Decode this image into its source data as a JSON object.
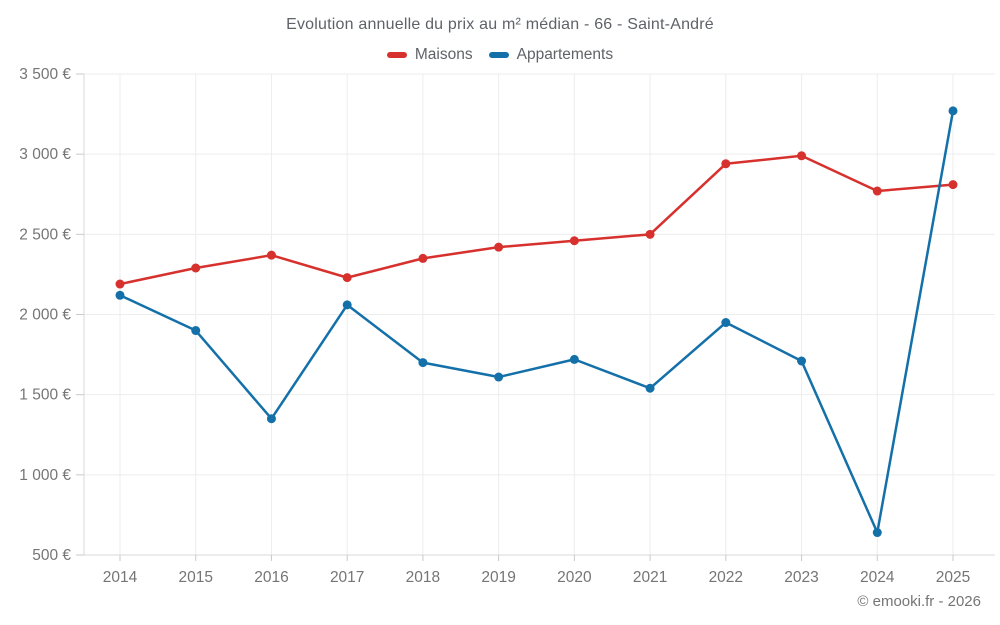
{
  "header": {
    "title": "Evolution annuelle du prix au m² médian - 66 - Saint-André"
  },
  "legend": [
    {
      "label": "Maisons",
      "color": "#d7312e"
    },
    {
      "label": "Appartements",
      "color": "#1470a8"
    }
  ],
  "footer": {
    "credit": "© emooki.fr - 2026"
  },
  "chart_data": {
    "type": "line",
    "title": "Evolution annuelle du prix au m² médian - 66 - Saint-André",
    "x": [
      "2014",
      "2015",
      "2016",
      "2017",
      "2018",
      "2019",
      "2020",
      "2021",
      "2022",
      "2023",
      "2024",
      "2025"
    ],
    "series": [
      {
        "name": "Maisons",
        "color": "#d7312e",
        "values": [
          2190,
          2290,
          2370,
          2230,
          2350,
          2420,
          2460,
          2500,
          2940,
          2990,
          2770,
          2810
        ]
      },
      {
        "name": "Appartements",
        "color": "#1470a8",
        "values": [
          2120,
          1900,
          1350,
          2060,
          1700,
          1610,
          1720,
          1540,
          1950,
          1710,
          640,
          3270
        ]
      }
    ],
    "xlabel": "",
    "ylabel": "",
    "ylim": [
      500,
      3500
    ],
    "ytick_step": 500,
    "ytick_labels": [
      "500 €",
      "1 000 €",
      "1 500 €",
      "2 000 €",
      "2 500 €",
      "3 000 €",
      "3 500 €"
    ],
    "grid": true,
    "legend_position": "top",
    "marker": "circle",
    "currency": "€"
  }
}
